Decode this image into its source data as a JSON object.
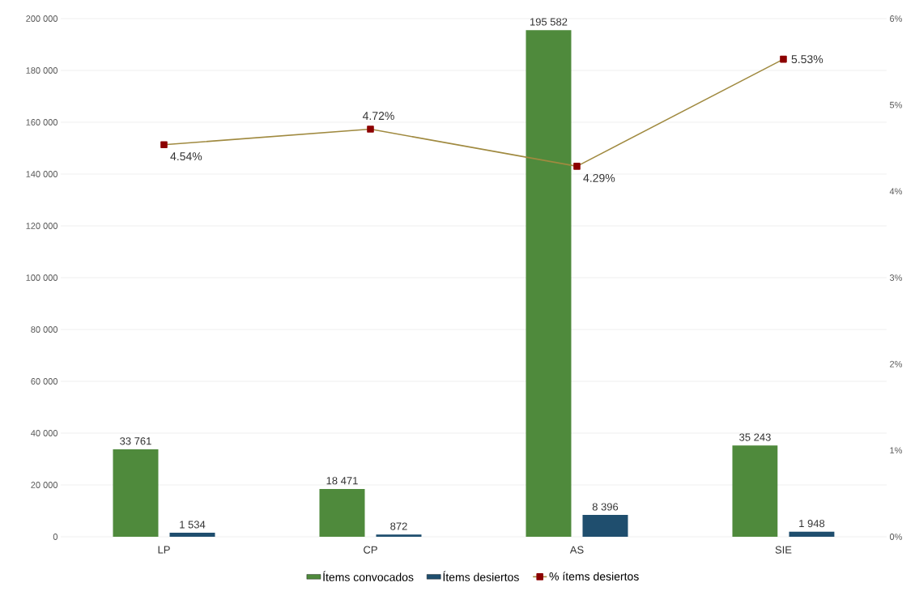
{
  "chart_data": {
    "type": "bar",
    "categories": [
      "LP",
      "CP",
      "AS",
      "SIE"
    ],
    "series": [
      {
        "name": "Ítems convocados",
        "color": "#4f8a3c",
        "values": [
          33761,
          18471,
          195582,
          35243
        ],
        "value_labels": [
          "33 761",
          "18 471",
          "195 582",
          "35 243"
        ]
      },
      {
        "name": "Ítems desiertos",
        "color": "#1f4e6e",
        "values": [
          1534,
          872,
          8396,
          1948
        ],
        "value_labels": [
          "1 534",
          "872",
          "8 396",
          "1 948"
        ]
      },
      {
        "name": "% ítems desiertos",
        "type": "line",
        "axis": "y2",
        "color": "#a08a40",
        "marker": "square",
        "values": [
          4.54,
          4.72,
          4.29,
          5.53
        ],
        "value_labels": [
          "4.54%",
          "4.72%",
          "4.29%",
          "5.53%"
        ]
      }
    ],
    "ylim": [
      0,
      200000
    ],
    "yticks": [
      {
        "value": 0,
        "label": "0"
      },
      {
        "value": 20000,
        "label": "20 000"
      },
      {
        "value": 40000,
        "label": "40 000"
      },
      {
        "value": 60000,
        "label": "60 000"
      },
      {
        "value": 80000,
        "label": "80 000"
      },
      {
        "value": 100000,
        "label": "100 000"
      },
      {
        "value": 120000,
        "label": "120 000"
      },
      {
        "value": 140000,
        "label": "140 000"
      },
      {
        "value": 160000,
        "label": "160 000"
      },
      {
        "value": 180000,
        "label": "180 000"
      },
      {
        "value": 200000,
        "label": "200 000"
      }
    ],
    "y2lim": [
      0,
      6
    ],
    "y2ticks": [
      {
        "value": 0,
        "label": "0%"
      },
      {
        "value": 1,
        "label": "1%"
      },
      {
        "value": 2,
        "label": "2%"
      },
      {
        "value": 3,
        "label": "3%"
      },
      {
        "value": 4,
        "label": "4%"
      },
      {
        "value": 5,
        "label": "5%"
      },
      {
        "value": 6,
        "label": "6%"
      }
    ],
    "grid": "y",
    "legend": "bottom"
  }
}
